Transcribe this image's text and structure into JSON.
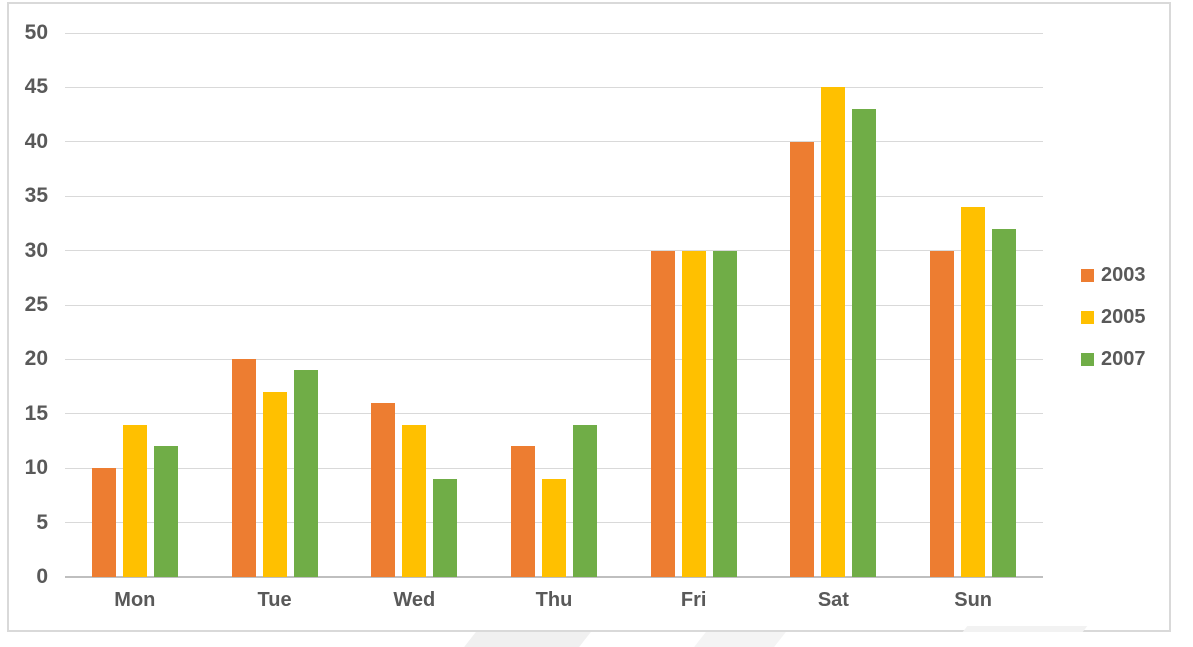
{
  "chart_data": {
    "type": "bar",
    "title": "",
    "xlabel": "",
    "ylabel": "",
    "categories": [
      "Mon",
      "Tue",
      "Wed",
      "Thu",
      "Fri",
      "Sat",
      "Sun"
    ],
    "series": [
      {
        "name": "2003",
        "color": "#ED7D31",
        "values": [
          10,
          20,
          16,
          12,
          30,
          40,
          30
        ]
      },
      {
        "name": "2005",
        "color": "#FFC000",
        "values": [
          14,
          17,
          14,
          9,
          30,
          45,
          34
        ]
      },
      {
        "name": "2007",
        "color": "#70AD47",
        "values": [
          12,
          19,
          9,
          14,
          30,
          43,
          32
        ]
      }
    ],
    "ylim": [
      0,
      50
    ],
    "ytick_step": 5,
    "y_tick_labels": [
      "0",
      "5",
      "10",
      "15",
      "20",
      "25",
      "30",
      "35",
      "40",
      "45",
      "50"
    ],
    "grid": true,
    "legend_position": "right",
    "legend_labels": [
      "2003",
      "2005",
      "2007"
    ]
  },
  "style": {
    "background": "#FFFFFF",
    "text_color": "#595959",
    "gridline_color": "#D9D9D9",
    "axis_line_color": "#BFBFBF",
    "frame_border_color": "#D9D9D9",
    "watermark_color": "#F0F0F0"
  }
}
